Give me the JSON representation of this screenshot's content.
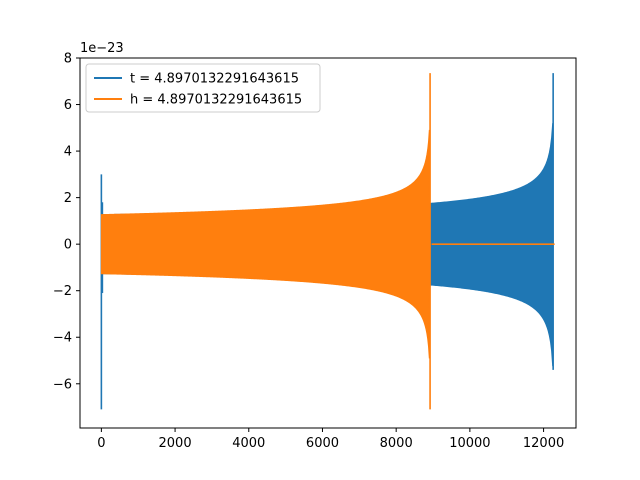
{
  "chart_data": {
    "type": "line",
    "title": "",
    "xlabel": "",
    "ylabel": "",
    "y_scale_label": "1e−23",
    "xlim": [
      -580,
      12880
    ],
    "ylim": [
      -7.9,
      8.0
    ],
    "x_ticks": [
      0,
      2000,
      4000,
      6000,
      8000,
      10000,
      12000
    ],
    "x_tick_labels": [
      "0",
      "2000",
      "4000",
      "6000",
      "8000",
      "10000",
      "12000"
    ],
    "y_ticks": [
      -6,
      -4,
      -2,
      0,
      2,
      4,
      6,
      8
    ],
    "y_tick_labels": [
      "−6",
      "−4",
      "−2",
      "0",
      "2",
      "4",
      "6",
      "8"
    ],
    "grid": false,
    "legend_position": "top-left",
    "series": [
      {
        "name": "t = 4.8970132291643615",
        "color": "#1f77b4",
        "description_points": {
          "start_spike": {
            "x": 0,
            "ymax": 3.0,
            "ymin": -7.1
          },
          "envelope_start": {
            "x": 60,
            "amp": 1.27
          },
          "envelope_end": {
            "x": 12250,
            "amp_upper": 5.2,
            "amp_lower": -5.4
          },
          "chirp_peak": {
            "x": 12260,
            "ymax": 7.35,
            "ymin": -5.4
          },
          "end_x": 12300
        }
      },
      {
        "name": "h = 4.8970132291643615",
        "color": "#ff7f0e",
        "description_points": {
          "envelope_start": {
            "x": 0,
            "amp": 1.27
          },
          "chirp_peak": {
            "x": 8920,
            "ymax": 7.35,
            "ymin": -7.1
          },
          "zero_after_x": 8960,
          "end_x": 12300
        }
      }
    ]
  }
}
